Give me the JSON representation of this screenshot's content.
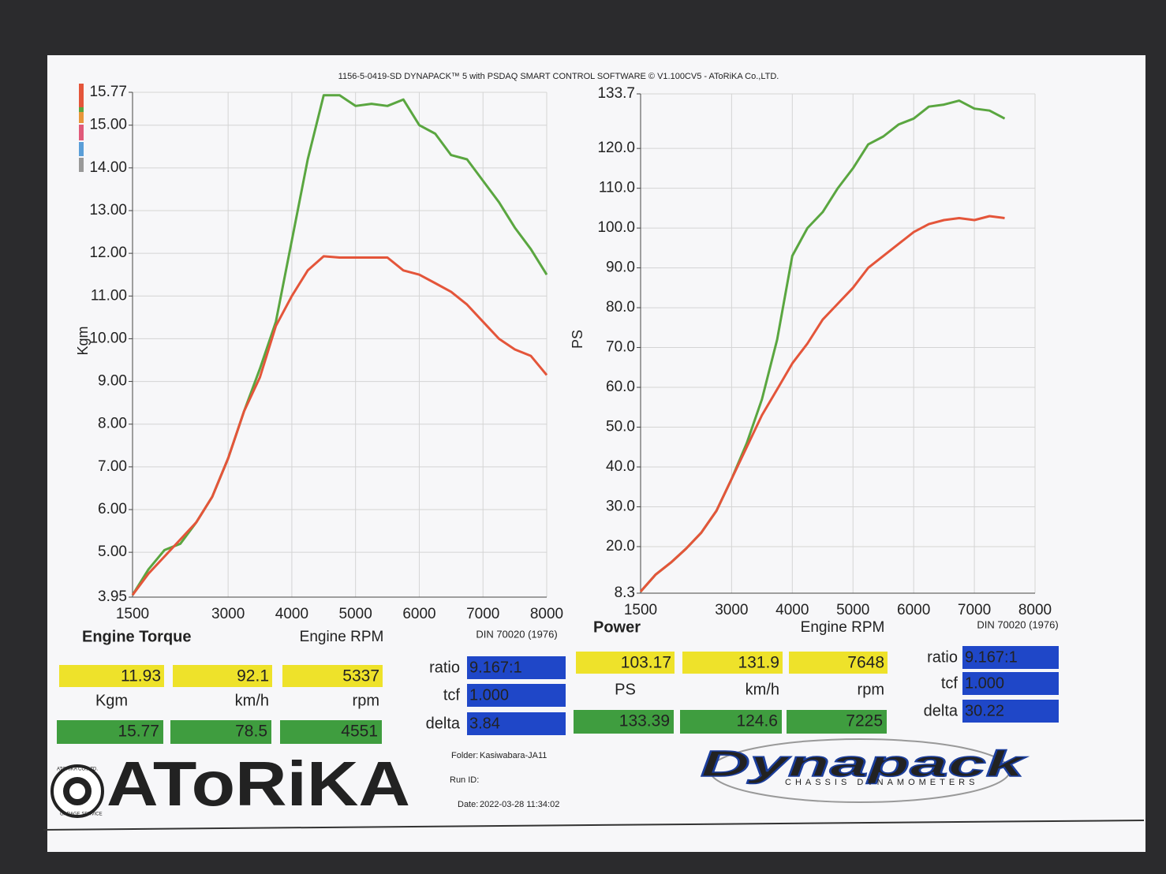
{
  "header": "1156-5-0419-SD DYNAPACK™ 5 with PSDAQ SMART CONTROL SOFTWARE © V1.100CV5 - AToRiKA Co.,LTD.",
  "chart_data": [
    {
      "type": "line",
      "title": "Engine Torque",
      "x_label": "Engine RPM",
      "y_label": "Kgm",
      "note": "DIN 70020 (1976)",
      "x": [
        1500,
        1750,
        2000,
        2250,
        2500,
        2750,
        3000,
        3250,
        3500,
        3750,
        4000,
        4250,
        4500,
        4750,
        5000,
        5250,
        5500,
        5750,
        6000,
        6250,
        6500,
        6750,
        7000,
        7250,
        7500,
        7750,
        8000
      ],
      "series": [
        {
          "color": "#5aa640",
          "values": [
            4.0,
            4.6,
            5.05,
            5.2,
            5.7,
            6.3,
            7.2,
            8.3,
            9.3,
            10.4,
            12.3,
            14.2,
            15.7,
            15.7,
            15.45,
            15.5,
            15.45,
            15.6,
            15.0,
            14.8,
            14.3,
            14.2,
            13.7,
            13.2,
            12.6,
            12.1,
            11.5
          ]
        },
        {
          "color": "#e4553a",
          "values": [
            4.0,
            4.5,
            4.9,
            5.3,
            5.7,
            6.3,
            7.2,
            8.3,
            9.1,
            10.3,
            11.0,
            11.6,
            11.93,
            11.9,
            11.9,
            11.9,
            11.9,
            11.6,
            11.5,
            11.3,
            11.1,
            10.8,
            10.4,
            10.0,
            9.75,
            9.6,
            9.15
          ]
        }
      ],
      "xlim": [
        1500,
        8000
      ],
      "xticks": [
        1500,
        3000,
        4000,
        5000,
        6000,
        7000,
        8000
      ],
      "ylim": [
        3.95,
        15.77
      ],
      "yticks": [
        15.77,
        {
          "value": 15,
          "label": "15.00"
        },
        {
          "value": 14,
          "label": "14.00"
        },
        {
          "value": 13,
          "label": "13.00"
        },
        {
          "value": 12,
          "label": "12.00"
        },
        {
          "value": 11,
          "label": "11.00"
        },
        {
          "value": 10,
          "label": "10.00"
        },
        {
          "value": 9,
          "label": "9.00"
        },
        {
          "value": 8,
          "label": "8.00"
        },
        {
          "value": 7,
          "label": "7.00"
        },
        {
          "value": 6,
          "label": "6.00"
        },
        {
          "value": 5,
          "label": "5.00"
        },
        3.95
      ],
      "grid": true
    },
    {
      "type": "line",
      "title": "Power",
      "x_label": "Engine RPM",
      "y_label": "PS",
      "note": "DIN 70020 (1976)",
      "x": [
        1500,
        1750,
        2000,
        2250,
        2500,
        2750,
        3000,
        3250,
        3500,
        3750,
        4000,
        4250,
        4500,
        4750,
        5000,
        5250,
        5500,
        5750,
        6000,
        6250,
        6500,
        6750,
        7000,
        7250,
        7500
      ],
      "series": [
        {
          "color": "#5aa640",
          "values": [
            8.7,
            13,
            16,
            19.5,
            23.5,
            29,
            37,
            46,
            57,
            72,
            93,
            100,
            104,
            110,
            115,
            121,
            123,
            126,
            127.5,
            130.5,
            131,
            132,
            130,
            129.5,
            127.5
          ]
        },
        {
          "color": "#e4553a",
          "values": [
            8.7,
            13,
            16,
            19.5,
            23.5,
            29,
            37,
            45,
            53,
            59.5,
            66,
            71,
            77,
            81,
            85,
            90,
            93,
            96,
            99,
            101,
            102,
            102.5,
            102,
            103,
            102.5
          ]
        }
      ],
      "xlim": [
        1500,
        8000
      ],
      "xticks": [
        1500,
        3000,
        4000,
        5000,
        6000,
        7000,
        8000
      ],
      "ylim": [
        8.3,
        133.7
      ],
      "yticks": [
        133.7,
        {
          "value": 120,
          "label": "120.0"
        },
        {
          "value": 110,
          "label": "110.0"
        },
        {
          "value": 100,
          "label": "100.0"
        },
        {
          "value": 90,
          "label": "90.0"
        },
        {
          "value": 80,
          "label": "80.0"
        },
        {
          "value": 70,
          "label": "70.0"
        },
        {
          "value": 60,
          "label": "60.0"
        },
        {
          "value": 50,
          "label": "50.0"
        },
        {
          "value": 40,
          "label": "40.0"
        },
        {
          "value": 30,
          "label": "30.0"
        },
        {
          "value": 20,
          "label": "20.0"
        },
        8.3
      ],
      "grid": true
    }
  ],
  "readouts": [
    {
      "yellow": [
        "11.93",
        "92.1",
        "5337"
      ],
      "units": [
        "Kgm",
        "km/h",
        "rpm"
      ],
      "green": [
        "15.77",
        "78.5",
        "4551"
      ],
      "params": [
        [
          "ratio",
          "9.167:1"
        ],
        [
          "tcf",
          "1.000"
        ],
        [
          "delta",
          "3.84"
        ]
      ]
    },
    {
      "yellow": [
        "103.17",
        "131.9",
        "7648"
      ],
      "units": [
        "PS",
        "km/h",
        "rpm"
      ],
      "green": [
        "133.39",
        "124.6",
        "7225"
      ],
      "params": [
        [
          "ratio",
          "9.167:1"
        ],
        [
          "tcf",
          "1.000"
        ],
        [
          "delta",
          "30.22"
        ]
      ]
    }
  ],
  "footer": {
    "logo": "AToRiKA",
    "seal_top": "ATORIKA CO.,LTD.",
    "seal_bottom": "GARAGE SERVICE",
    "folder_label": "Folder:",
    "folder": "Kasiwabara-JA11",
    "run_label": "Run ID:",
    "date_label": "Date:",
    "date": "2022-03-28 11:34:02",
    "brand": "Dynapack",
    "brand_sub": "CHASSIS DYNAMOMETERS"
  }
}
